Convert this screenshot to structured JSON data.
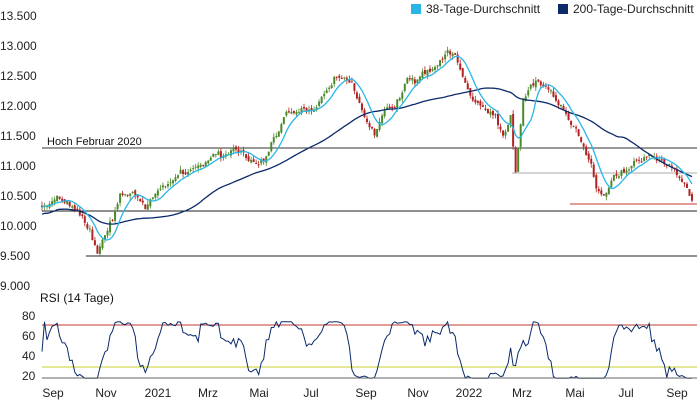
{
  "chart_data": [
    {
      "type": "candlestick",
      "title": "",
      "ylim": [
        9000,
        13500
      ],
      "y_ticks": [
        "13.500",
        "13.000",
        "12.500",
        "12.000",
        "11.500",
        "11.000",
        "10.500",
        "10.000",
        "9.500",
        "9.000"
      ],
      "y_tick_values": [
        13500,
        13000,
        12500,
        12000,
        11500,
        11000,
        10500,
        10000,
        9500,
        9000
      ],
      "x_ticks": [
        "Sep",
        "Nov",
        "2021",
        "Mrz",
        "Mai",
        "Jul",
        "Sep",
        "Nov",
        "2022",
        "Mrz",
        "Mai",
        "Jul",
        "Sep"
      ],
      "legend": {
        "placement": "top-right",
        "items": [
          {
            "label": "38-Tage-Durchschnitt",
            "color": "#29b6e6"
          },
          {
            "label": "200-Tage-Durchschnitt",
            "color": "#0b2a6b"
          }
        ]
      },
      "annotations": [
        {
          "text": "Hoch Februar 2020",
          "level": 11300
        }
      ],
      "horizontal_lines": [
        {
          "level": 11300,
          "color": "#333333"
        },
        {
          "level": 10250,
          "color": "#222222"
        },
        {
          "level": 9500,
          "color": "#222222"
        },
        {
          "level": 10870,
          "color": "#aaaaaa"
        },
        {
          "level": 10350,
          "color": "#c0392b"
        }
      ],
      "candle_colors": {
        "up": "#4a8a2a",
        "down": "#b22222"
      },
      "close_anchors": [
        [
          0,
          10300
        ],
        [
          6,
          10450
        ],
        [
          11,
          10350
        ],
        [
          16,
          10150
        ],
        [
          19,
          9900
        ],
        [
          22,
          9550
        ],
        [
          25,
          9850
        ],
        [
          28,
          10100
        ],
        [
          31,
          10500
        ],
        [
          35,
          10550
        ],
        [
          38,
          10450
        ],
        [
          41,
          10300
        ],
        [
          44,
          10500
        ],
        [
          49,
          10650
        ],
        [
          52,
          10750
        ],
        [
          55,
          10900
        ],
        [
          58,
          10850
        ],
        [
          63,
          11000
        ],
        [
          66,
          11100
        ],
        [
          69,
          11200
        ],
        [
          72,
          11150
        ],
        [
          75,
          11250
        ],
        [
          78,
          11250
        ],
        [
          82,
          11100
        ],
        [
          85,
          11000
        ],
        [
          88,
          11100
        ],
        [
          91,
          11350
        ],
        [
          94,
          11600
        ],
        [
          97,
          11900
        ],
        [
          100,
          11900
        ],
        [
          104,
          11950
        ],
        [
          108,
          11900
        ],
        [
          111,
          12100
        ],
        [
          114,
          12300
        ],
        [
          117,
          12500
        ],
        [
          120,
          12450
        ],
        [
          123,
          12350
        ],
        [
          126,
          12000
        ],
        [
          129,
          11700
        ],
        [
          132,
          11500
        ],
        [
          136,
          11900
        ],
        [
          139,
          11950
        ],
        [
          142,
          12100
        ],
        [
          145,
          12450
        ],
        [
          148,
          12400
        ],
        [
          152,
          12550
        ],
        [
          155,
          12600
        ],
        [
          158,
          12750
        ],
        [
          161,
          12900
        ],
        [
          164,
          12800
        ],
        [
          167,
          12500
        ],
        [
          170,
          12150
        ],
        [
          174,
          12000
        ],
        [
          177,
          11900
        ],
        [
          180,
          11800
        ],
        [
          183,
          11500
        ],
        [
          186,
          11800
        ],
        [
          188,
          10900
        ],
        [
          191,
          12100
        ],
        [
          194,
          12300
        ],
        [
          197,
          12400
        ],
        [
          200,
          12300
        ],
        [
          203,
          12150
        ],
        [
          207,
          11900
        ],
        [
          210,
          11700
        ],
        [
          213,
          11500
        ],
        [
          216,
          11200
        ],
        [
          218,
          11000
        ],
        [
          220,
          10600
        ],
        [
          224,
          10500
        ],
        [
          227,
          10800
        ],
        [
          231,
          10900
        ],
        [
          234,
          11000
        ],
        [
          238,
          11100
        ],
        [
          241,
          11200
        ],
        [
          244,
          11100
        ],
        [
          247,
          11050
        ],
        [
          250,
          11000
        ],
        [
          253,
          10800
        ],
        [
          255,
          10650
        ],
        [
          258,
          10450
        ]
      ]
    },
    {
      "type": "line",
      "title": "RSI (14 Tage)",
      "ylim": [
        20,
        85
      ],
      "y_ticks": [
        "80",
        "60",
        "40",
        "20"
      ],
      "y_tick_values": [
        80,
        60,
        40,
        20
      ],
      "x_ticks": [
        "Sep",
        "Nov",
        "2021",
        "Mrz",
        "Mai",
        "Jul",
        "Sep",
        "Nov",
        "2022",
        "Mrz",
        "Mai",
        "Jul",
        "Sep"
      ],
      "reference_lines": [
        {
          "level": 70,
          "color": "#c0392b"
        },
        {
          "level": 30,
          "color": "#c9d22a"
        }
      ],
      "series_color": "#0b2a6b"
    }
  ]
}
